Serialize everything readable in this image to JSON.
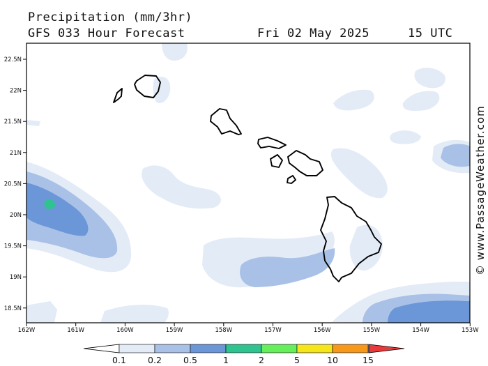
{
  "header": {
    "title": "Precipitation (mm/3hr)",
    "subtitle": "GFS 033 Hour Forecast",
    "date": "Fri 02 May 2025",
    "time": "15 UTC"
  },
  "credit": "© www.PassageWeather.com",
  "map": {
    "region": "Hawaiian Islands",
    "lon_range": [
      -162,
      -153
    ],
    "lat_range": [
      18.25,
      22.75
    ],
    "lat_ticks": [
      "22.5N",
      "22N",
      "21.5N",
      "21N",
      "20.5N",
      "20N",
      "19.5N",
      "19N",
      "18.5N"
    ],
    "lon_ticks": [
      "162W",
      "161W",
      "160W",
      "159W",
      "158W",
      "157W",
      "156W",
      "155W",
      "154W",
      "153W"
    ]
  },
  "colorbar": {
    "labels": [
      "0.1",
      "0.2",
      "0.5",
      "1",
      "2",
      "5",
      "10",
      "15"
    ],
    "colors": [
      "#e3ebf7",
      "#a9c1e6",
      "#6b96d8",
      "#2fc38f",
      "#66ef5a",
      "#f5e51b",
      "#f7981a",
      "#e83a3a"
    ]
  }
}
